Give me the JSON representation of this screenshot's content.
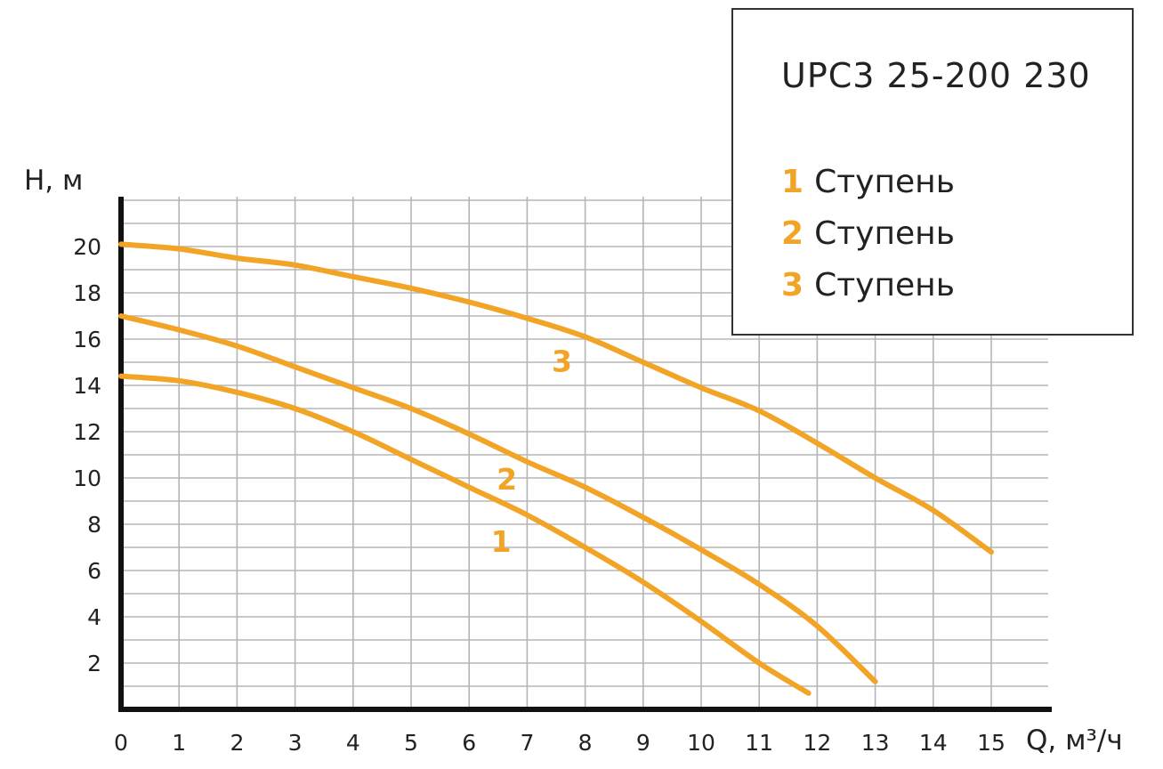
{
  "chart_data": {
    "type": "line",
    "title": "UPC3 25-200 230",
    "xlabel": "Q, м³/ч",
    "ylabel": "H, м",
    "xlim": [
      0,
      16
    ],
    "ylim": [
      0,
      22
    ],
    "x_ticks": [
      "0",
      "1",
      "2",
      "3",
      "4",
      "5",
      "6",
      "7",
      "8",
      "9",
      "10",
      "11",
      "12",
      "13",
      "14",
      "15"
    ],
    "y_ticks": [
      "2",
      "4",
      "6",
      "8",
      "10",
      "12",
      "14",
      "16",
      "18",
      "20"
    ],
    "grid": true,
    "legend_placement": "top-right",
    "line_color": "#f2a427",
    "series": [
      {
        "name": "Ступень",
        "label": "1",
        "x": [
          0,
          1,
          2,
          3,
          4,
          5,
          6,
          7,
          8,
          9,
          10,
          11,
          11.85
        ],
        "y": [
          14.4,
          14.2,
          13.7,
          13.0,
          12.0,
          10.8,
          9.6,
          8.4,
          7.0,
          5.5,
          3.8,
          2.0,
          0.7
        ]
      },
      {
        "name": "Ступень",
        "label": "2",
        "x": [
          0,
          1,
          2,
          3,
          4,
          5,
          6,
          7,
          8,
          9,
          10,
          11,
          12,
          13
        ],
        "y": [
          17.0,
          16.4,
          15.7,
          14.8,
          13.9,
          13.0,
          11.9,
          10.7,
          9.6,
          8.3,
          6.9,
          5.4,
          3.6,
          1.2
        ]
      },
      {
        "name": "Ступень",
        "label": "3",
        "x": [
          0,
          1,
          2,
          3,
          4,
          5,
          6,
          7,
          8,
          9,
          10,
          11,
          12,
          13,
          14,
          15
        ],
        "y": [
          20.1,
          19.9,
          19.5,
          19.2,
          18.7,
          18.2,
          17.6,
          16.9,
          16.1,
          15.0,
          13.9,
          12.9,
          11.5,
          10.0,
          8.6,
          6.8
        ]
      }
    ]
  },
  "legend": {
    "title": "UPC3 25-200 230",
    "entries": [
      {
        "num": "1",
        "label": "Ступень"
      },
      {
        "num": "2",
        "label": "Ступень"
      },
      {
        "num": "3",
        "label": "Ступень"
      }
    ]
  },
  "curve_labels": [
    {
      "text": "1",
      "x": 6.55,
      "y": 6.8
    },
    {
      "text": "2",
      "x": 6.65,
      "y": 9.5
    },
    {
      "text": "3",
      "x": 7.6,
      "y": 14.6
    }
  ]
}
